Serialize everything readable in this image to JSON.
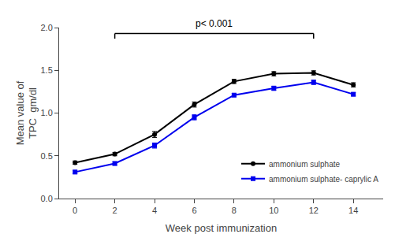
{
  "chart_data": {
    "type": "line",
    "x": [
      0,
      2,
      4,
      6,
      8,
      10,
      12,
      14
    ],
    "series": [
      {
        "name": "ammonium sulphate",
        "color": "#000000",
        "marker": "circle",
        "values": [
          0.42,
          0.52,
          0.75,
          1.1,
          1.37,
          1.46,
          1.47,
          1.33
        ],
        "errors": [
          0.02,
          0.02,
          0.035,
          0.03,
          0.025,
          0.025,
          0.025,
          0.025
        ]
      },
      {
        "name": "ammonium sulphate- caprylic A",
        "color": "#0000ee",
        "marker": "square",
        "values": [
          0.31,
          0.41,
          0.62,
          0.95,
          1.21,
          1.29,
          1.36,
          1.22
        ],
        "errors": [
          0.02,
          0.02,
          0.03,
          0.03,
          0.02,
          0.025,
          0.025,
          0.02
        ]
      }
    ],
    "x_label": "Week post immunization",
    "y_label": "Mean value of\nTPC  gm/dl",
    "xlim": [
      -0.8,
      15.5
    ],
    "xticks": [
      0,
      2,
      4,
      6,
      8,
      10,
      12,
      14
    ],
    "ylim": [
      0.0,
      2.0
    ],
    "yticks": [
      {
        "value": 0.0,
        "label": "0.0"
      },
      0.5,
      {
        "value": 1.0,
        "label": "1.0"
      },
      1.5,
      {
        "value": 2.0,
        "label": "2.0"
      }
    ],
    "grid": false,
    "legend": "lower right",
    "annotations": [
      {
        "text": "p< 0.001",
        "x_start": 2,
        "x_end": 12,
        "y": 1.93
      }
    ]
  }
}
